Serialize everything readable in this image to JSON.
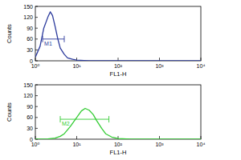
{
  "chart_data": [
    {
      "type": "line",
      "log": "x",
      "x_label": "FL1-H",
      "y_label": "Counts",
      "x": [
        1,
        1.3,
        1.6,
        2,
        2.3,
        2.6,
        3,
        3.5,
        4,
        5,
        6,
        8,
        10,
        15,
        20,
        50,
        100,
        1000,
        10000
      ],
      "series": [
        {
          "name": "M1",
          "color": "#2b3a9c",
          "values": [
            10,
            40,
            90,
            120,
            135,
            125,
            95,
            60,
            35,
            18,
            8,
            4,
            2,
            1,
            0,
            0,
            0,
            0,
            0
          ]
        }
      ],
      "xlim": [
        1,
        10000
      ],
      "xticks": [
        {
          "value": 1,
          "label": "10⁰"
        },
        {
          "value": 10,
          "label": "10¹"
        },
        {
          "value": 100,
          "label": "10²"
        },
        {
          "value": 1000,
          "label": "10³"
        },
        {
          "value": 10000,
          "label": "10⁴"
        }
      ],
      "ylim": [
        0,
        150
      ],
      "yticks": [
        0,
        30,
        60,
        90,
        120,
        150
      ],
      "grid": false,
      "annotations": [
        {
          "text": "M1",
          "x": [
            1.5,
            5
          ],
          "y": 60
        }
      ]
    },
    {
      "type": "line",
      "log": "x",
      "x_label": "FL1-H",
      "y_label": "Counts",
      "x": [
        1,
        2,
        3,
        4,
        5,
        7,
        10,
        13,
        16,
        20,
        25,
        30,
        40,
        50,
        70,
        100,
        200,
        1000,
        10000
      ],
      "series": [
        {
          "name": "M2",
          "color": "#33cc33",
          "values": [
            0,
            1,
            3,
            8,
            15,
            35,
            60,
            78,
            85,
            80,
            68,
            52,
            30,
            15,
            6,
            2,
            0,
            0,
            0
          ]
        }
      ],
      "xlim": [
        1,
        10000
      ],
      "xticks": [
        {
          "value": 1,
          "label": "10⁰"
        },
        {
          "value": 10,
          "label": "10¹"
        },
        {
          "value": 100,
          "label": "10²"
        },
        {
          "value": 1000,
          "label": "10³"
        },
        {
          "value": 10000,
          "label": "10⁴"
        }
      ],
      "ylim": [
        0,
        150
      ],
      "yticks": [
        0,
        30,
        60,
        90,
        120,
        150
      ],
      "grid": false,
      "annotations": [
        {
          "text": "M2",
          "x": [
            4,
            60
          ],
          "y": 55
        }
      ]
    }
  ]
}
